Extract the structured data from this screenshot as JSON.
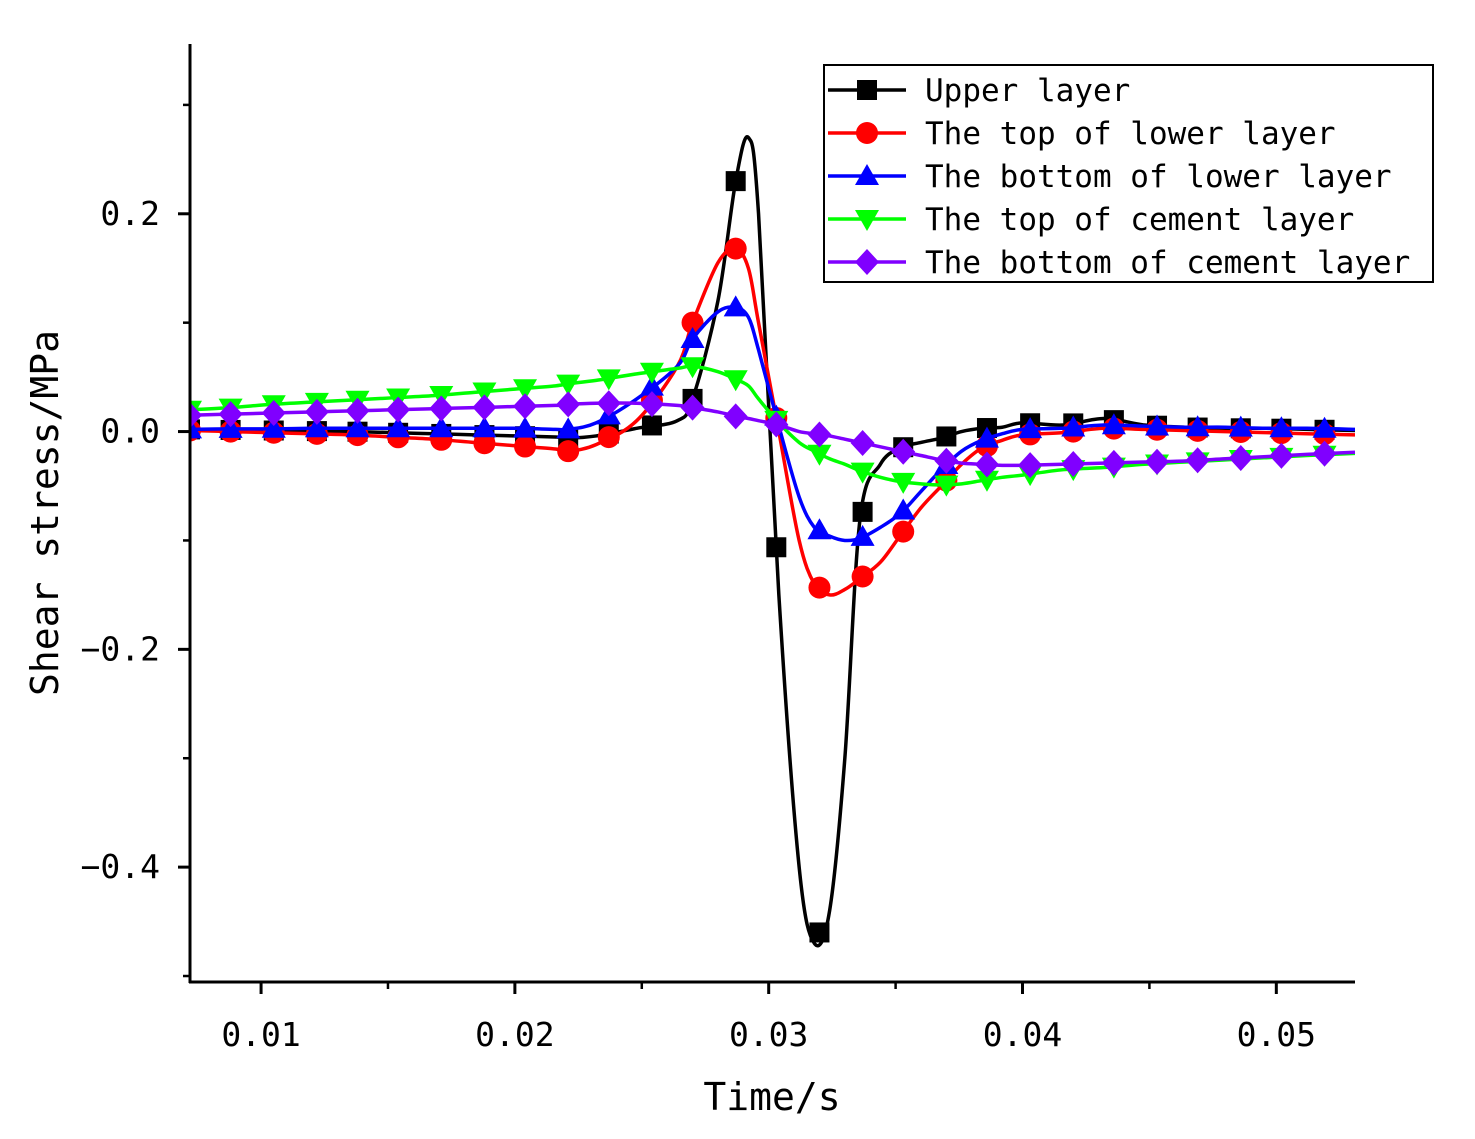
{
  "chart_data": {
    "type": "line",
    "title": "",
    "xlabel": "Time/s",
    "ylabel": "Shear stress/MPa",
    "xlim": [
      0.0072,
      0.0531
    ],
    "ylim": [
      -0.5055,
      0.3596
    ],
    "x_ticks": [
      {
        "value": 0.01,
        "label": "0.01"
      },
      {
        "value": 0.02,
        "label": "0.02"
      },
      {
        "value": 0.03,
        "label": "0.03"
      },
      {
        "value": 0.04,
        "label": "0.04"
      },
      {
        "value": 0.05,
        "label": "0.05"
      }
    ],
    "y_ticks": [
      {
        "value": -0.4,
        "label": "−0.4"
      },
      {
        "value": -0.2,
        "label": "−0.2"
      },
      {
        "value": 0.0,
        "label": "0.0"
      },
      {
        "value": 0.2,
        "label": "0.2"
      }
    ],
    "grid": false,
    "legend_position": "top-right",
    "x": [
      0.0072,
      0.0088,
      0.0104,
      0.012,
      0.0136,
      0.0152,
      0.0168,
      0.0184,
      0.02,
      0.0216,
      0.0221,
      0.0232,
      0.0248,
      0.0264,
      0.027,
      0.028,
      0.0287,
      0.0292,
      0.0296,
      0.0304,
      0.0312,
      0.0318,
      0.0324,
      0.033,
      0.0336,
      0.0344,
      0.0352,
      0.036,
      0.0368,
      0.0376,
      0.0384,
      0.0392,
      0.04,
      0.0416,
      0.0432,
      0.0448,
      0.0464,
      0.048,
      0.0496,
      0.0512,
      0.0531
    ],
    "series": [
      {
        "name": "Upper layer",
        "color": "#000000",
        "marker": "square",
        "values": [
          0.002,
          0.0015,
          0.001,
          0.0005,
          0.0,
          -0.001,
          -0.002,
          -0.003,
          -0.004,
          -0.005,
          -0.006,
          -0.004,
          0.003,
          0.01,
          0.03,
          0.12,
          0.23,
          0.27,
          0.2,
          -0.15,
          -0.4,
          -0.47,
          -0.44,
          -0.3,
          -0.08,
          -0.03,
          -0.015,
          -0.01,
          -0.006,
          0.0,
          0.003,
          0.004,
          0.008,
          0.006,
          0.012,
          0.006,
          0.004,
          0.003,
          0.003,
          0.002,
          0.001
        ]
      },
      {
        "name": "The top of lower layer",
        "color": "#ff0000",
        "marker": "circle",
        "values": [
          0.001,
          0.0,
          -0.001,
          -0.002,
          -0.003,
          -0.005,
          -0.007,
          -0.01,
          -0.013,
          -0.016,
          -0.018,
          -0.012,
          0.01,
          0.06,
          0.1,
          0.155,
          0.168,
          0.15,
          0.1,
          0.0,
          -0.1,
          -0.14,
          -0.15,
          -0.145,
          -0.135,
          -0.12,
          -0.095,
          -0.07,
          -0.05,
          -0.03,
          -0.015,
          -0.008,
          -0.003,
          -0.001,
          0.003,
          0.002,
          0.001,
          0.0,
          -0.001,
          -0.002,
          -0.003
        ]
      },
      {
        "name": "The bottom of lower layer",
        "color": "#0000ff",
        "marker": "triangle-up",
        "values": [
          0.002,
          0.0025,
          0.0025,
          0.003,
          0.003,
          0.003,
          0.003,
          0.003,
          0.003,
          0.002,
          0.002,
          0.008,
          0.03,
          0.06,
          0.085,
          0.11,
          0.114,
          0.105,
          0.075,
          0.005,
          -0.06,
          -0.088,
          -0.096,
          -0.1,
          -0.098,
          -0.088,
          -0.075,
          -0.055,
          -0.035,
          -0.018,
          -0.008,
          -0.002,
          0.002,
          0.003,
          0.006,
          0.005,
          0.004,
          0.004,
          0.003,
          0.003,
          0.002
        ]
      },
      {
        "name": "The top of cement layer",
        "color": "#00ff00",
        "marker": "triangle-down",
        "values": [
          0.02,
          0.022,
          0.025,
          0.027,
          0.029,
          0.031,
          0.033,
          0.036,
          0.039,
          0.042,
          0.044,
          0.047,
          0.053,
          0.058,
          0.06,
          0.055,
          0.048,
          0.042,
          0.03,
          0.008,
          -0.01,
          -0.018,
          -0.025,
          -0.03,
          -0.036,
          -0.042,
          -0.046,
          -0.048,
          -0.049,
          -0.048,
          -0.045,
          -0.042,
          -0.04,
          -0.035,
          -0.033,
          -0.03,
          -0.028,
          -0.026,
          -0.024,
          -0.022,
          -0.02
        ]
      },
      {
        "name": "The bottom of cement layer",
        "color": "#8000ff",
        "marker": "diamond",
        "values": [
          0.015,
          0.016,
          0.017,
          0.018,
          0.019,
          0.02,
          0.021,
          0.022,
          0.023,
          0.024,
          0.025,
          0.026,
          0.026,
          0.024,
          0.022,
          0.018,
          0.014,
          0.012,
          0.01,
          0.006,
          0.0,
          -0.002,
          -0.004,
          -0.007,
          -0.01,
          -0.014,
          -0.018,
          -0.022,
          -0.026,
          -0.029,
          -0.03,
          -0.031,
          -0.031,
          -0.03,
          -0.029,
          -0.028,
          -0.027,
          -0.025,
          -0.023,
          -0.021,
          -0.019
        ]
      }
    ],
    "markers_x": [
      [
        0.0072,
        0.0088,
        0.0105,
        0.0122,
        0.0138,
        0.0154,
        0.0171,
        0.0188,
        0.0204,
        0.0221,
        0.0237,
        0.0254,
        0.027,
        0.0287,
        0.0303,
        0.032,
        0.0337,
        0.0353,
        0.037,
        0.0386,
        0.0403,
        0.042,
        0.0436,
        0.0453,
        0.0469,
        0.0486,
        0.0502,
        0.0519
      ],
      [
        0.0072,
        0.0088,
        0.0105,
        0.0122,
        0.0138,
        0.0154,
        0.0171,
        0.0188,
        0.0204,
        0.0221,
        0.0237,
        0.0254,
        0.027,
        0.0287,
        0.0303,
        0.032,
        0.0337,
        0.0353,
        0.037,
        0.0386,
        0.0403,
        0.042,
        0.0436,
        0.0453,
        0.0469,
        0.0486,
        0.0502,
        0.0519
      ],
      [
        0.0072,
        0.0088,
        0.0105,
        0.0122,
        0.0138,
        0.0154,
        0.0171,
        0.0188,
        0.0204,
        0.0221,
        0.0237,
        0.0254,
        0.027,
        0.0287,
        0.0303,
        0.032,
        0.0337,
        0.0353,
        0.037,
        0.0386,
        0.0403,
        0.042,
        0.0436,
        0.0453,
        0.0469,
        0.0486,
        0.0502,
        0.0519
      ],
      [
        0.0072,
        0.0088,
        0.0105,
        0.0122,
        0.0138,
        0.0154,
        0.0171,
        0.0188,
        0.0204,
        0.0221,
        0.0237,
        0.0254,
        0.027,
        0.0287,
        0.0303,
        0.032,
        0.0337,
        0.0353,
        0.037,
        0.0386,
        0.0403,
        0.042,
        0.0436,
        0.0453,
        0.0469,
        0.0486,
        0.0502,
        0.0519
      ],
      [
        0.0072,
        0.0088,
        0.0105,
        0.0122,
        0.0138,
        0.0154,
        0.0171,
        0.0188,
        0.0204,
        0.0221,
        0.0237,
        0.0254,
        0.027,
        0.0287,
        0.0303,
        0.032,
        0.0337,
        0.0353,
        0.037,
        0.0386,
        0.0403,
        0.042,
        0.0436,
        0.0453,
        0.0469,
        0.0486,
        0.0502,
        0.0519
      ]
    ]
  }
}
